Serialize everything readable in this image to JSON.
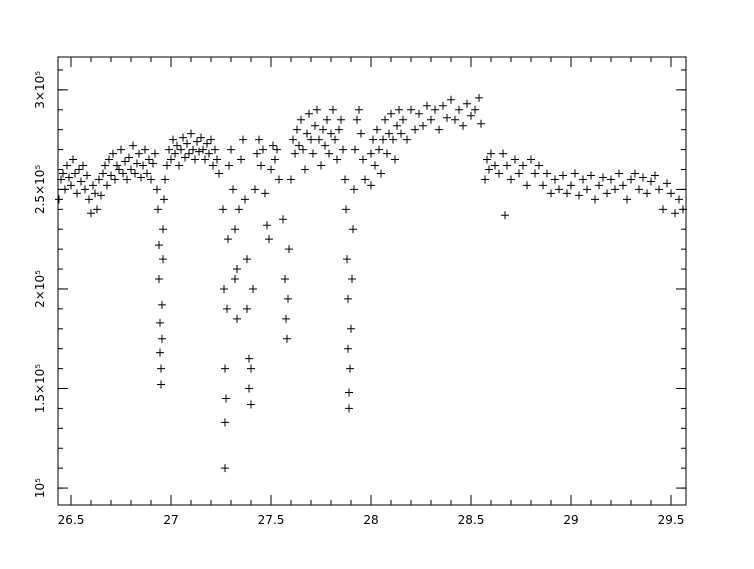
{
  "chart_data": {
    "type": "scatter",
    "marker": "+",
    "color": "#000000",
    "xlim": [
      26.435,
      29.575
    ],
    "ylim": [
      91500,
      316500
    ],
    "xticks": [
      26.5,
      27,
      27.5,
      28,
      28.5,
      29,
      29.5
    ],
    "yticks": [
      {
        "value": 100000,
        "label": "10⁵"
      },
      {
        "value": 150000,
        "label": "1.5×10⁵"
      },
      {
        "value": 200000,
        "label": "2×10⁵"
      },
      {
        "value": 250000,
        "label": "2.5×10⁵"
      },
      {
        "value": 300000,
        "label": "3×10⁵"
      }
    ],
    "xminor": [
      26.5,
      26.6,
      26.7,
      26.8,
      26.9,
      27,
      27.1,
      27.2,
      27.3,
      27.4,
      27.5,
      27.6,
      27.7,
      27.8,
      27.9,
      28,
      28.1,
      28.2,
      28.3,
      28.4,
      28.5,
      28.6,
      28.7,
      28.8,
      28.9,
      29,
      29.1,
      29.2,
      29.3,
      29.4,
      29.5
    ],
    "yminor": [
      100000,
      110000,
      120000,
      130000,
      140000,
      150000,
      160000,
      170000,
      180000,
      190000,
      200000,
      210000,
      220000,
      230000,
      240000,
      250000,
      260000,
      270000,
      280000,
      290000,
      300000,
      310000
    ],
    "x": [
      26.44,
      26.45,
      26.46,
      26.47,
      26.48,
      26.49,
      26.5,
      26.51,
      26.52,
      26.53,
      26.54,
      26.55,
      26.56,
      26.57,
      26.58,
      26.59,
      26.6,
      26.61,
      26.62,
      26.63,
      26.64,
      26.65,
      26.66,
      26.67,
      26.68,
      26.69,
      26.7,
      26.71,
      26.72,
      26.73,
      26.74,
      26.75,
      26.76,
      26.77,
      26.78,
      26.79,
      26.8,
      26.81,
      26.82,
      26.83,
      26.84,
      26.85,
      26.86,
      26.87,
      26.88,
      26.89,
      26.9,
      26.91,
      26.92,
      26.93,
      26.935,
      26.94,
      26.94,
      26.945,
      26.945,
      26.95,
      26.95,
      26.955,
      26.955,
      26.96,
      26.96,
      26.965,
      26.97,
      26.98,
      26.99,
      27.0,
      27.01,
      27.02,
      27.03,
      27.04,
      27.05,
      27.06,
      27.07,
      27.08,
      27.09,
      27.1,
      27.11,
      27.12,
      27.13,
      27.14,
      27.15,
      27.16,
      27.17,
      27.18,
      27.19,
      27.2,
      27.21,
      27.22,
      27.23,
      27.24,
      27.26,
      27.265,
      27.27,
      27.27,
      27.27,
      27.275,
      27.28,
      27.285,
      27.29,
      27.3,
      27.31,
      27.32,
      27.32,
      27.33,
      27.33,
      27.34,
      27.35,
      27.36,
      27.37,
      27.38,
      27.38,
      27.39,
      27.39,
      27.4,
      27.4,
      27.41,
      27.42,
      27.43,
      27.44,
      27.45,
      27.46,
      27.47,
      27.48,
      27.49,
      27.5,
      27.51,
      27.52,
      27.53,
      27.54,
      27.56,
      27.57,
      27.575,
      27.58,
      27.585,
      27.59,
      27.6,
      27.61,
      27.62,
      27.63,
      27.64,
      27.65,
      27.66,
      27.67,
      27.68,
      27.69,
      27.7,
      27.71,
      27.72,
      27.73,
      27.74,
      27.75,
      27.76,
      27.77,
      27.78,
      27.79,
      27.8,
      27.81,
      27.82,
      27.83,
      27.84,
      27.85,
      27.86,
      27.87,
      27.875,
      27.88,
      27.885,
      27.885,
      27.89,
      27.89,
      27.895,
      27.9,
      27.905,
      27.91,
      27.915,
      27.92,
      27.93,
      27.94,
      27.95,
      27.96,
      27.97,
      28.0,
      28.0,
      28.01,
      28.02,
      28.03,
      28.04,
      28.05,
      28.06,
      28.07,
      28.08,
      28.09,
      28.1,
      28.11,
      28.12,
      28.13,
      28.14,
      28.15,
      28.16,
      28.18,
      28.2,
      28.22,
      28.24,
      28.26,
      28.28,
      28.3,
      28.32,
      28.34,
      28.36,
      28.38,
      28.4,
      28.42,
      28.44,
      28.46,
      28.48,
      28.5,
      28.52,
      28.54,
      28.55,
      28.57,
      28.58,
      28.59,
      28.6,
      28.62,
      28.64,
      28.66,
      28.67,
      28.68,
      28.7,
      28.72,
      28.74,
      28.76,
      28.78,
      28.8,
      28.82,
      28.84,
      28.86,
      28.88,
      28.9,
      28.92,
      28.94,
      28.96,
      28.98,
      29.0,
      29.02,
      29.04,
      29.06,
      29.08,
      29.1,
      29.12,
      29.14,
      29.16,
      29.18,
      29.2,
      29.22,
      29.24,
      29.26,
      29.28,
      29.3,
      29.32,
      29.34,
      29.36,
      29.38,
      29.4,
      29.42,
      29.44,
      29.46,
      29.48,
      29.5,
      29.52,
      29.54,
      29.56
    ],
    "values": [
      245000,
      255000,
      258000,
      250000,
      262000,
      256000,
      252000,
      265000,
      258000,
      248000,
      260000,
      254000,
      262000,
      250000,
      257000,
      245000,
      238000,
      252000,
      248000,
      240000,
      255000,
      247000,
      258000,
      262000,
      252000,
      265000,
      257000,
      268000,
      255000,
      262000,
      260000,
      270000,
      258000,
      264000,
      255000,
      266000,
      260000,
      272000,
      258000,
      263000,
      268000,
      256000,
      262000,
      270000,
      258000,
      265000,
      255000,
      263000,
      268000,
      250000,
      240000,
      222000,
      205000,
      183000,
      168000,
      152000,
      160000,
      175000,
      192000,
      215000,
      230000,
      245000,
      255000,
      262000,
      270000,
      265000,
      275000,
      268000,
      272000,
      262000,
      270000,
      276000,
      266000,
      273000,
      268000,
      278000,
      270000,
      265000,
      274000,
      269000,
      276000,
      270000,
      265000,
      273000,
      268000,
      275000,
      262000,
      270000,
      265000,
      258000,
      240000,
      200000,
      160000,
      133000,
      110000,
      145000,
      190000,
      225000,
      262000,
      270000,
      250000,
      230000,
      205000,
      185000,
      210000,
      240000,
      265000,
      275000,
      245000,
      215000,
      190000,
      165000,
      150000,
      142000,
      160000,
      200000,
      250000,
      268000,
      275000,
      262000,
      270000,
      248000,
      232000,
      225000,
      260000,
      272000,
      265000,
      270000,
      255000,
      235000,
      205000,
      185000,
      175000,
      195000,
      220000,
      255000,
      275000,
      268000,
      280000,
      272000,
      285000,
      270000,
      260000,
      278000,
      288000,
      275000,
      268000,
      282000,
      290000,
      275000,
      262000,
      280000,
      272000,
      285000,
      268000,
      278000,
      290000,
      275000,
      265000,
      280000,
      285000,
      270000,
      255000,
      240000,
      215000,
      195000,
      170000,
      148000,
      140000,
      160000,
      180000,
      205000,
      230000,
      250000,
      270000,
      285000,
      290000,
      278000,
      265000,
      255000,
      252000,
      268000,
      275000,
      262000,
      280000,
      270000,
      258000,
      275000,
      285000,
      268000,
      278000,
      288000,
      275000,
      265000,
      282000,
      290000,
      278000,
      285000,
      275000,
      290000,
      280000,
      288000,
      282000,
      292000,
      285000,
      290000,
      280000,
      292000,
      286000,
      295000,
      285000,
      290000,
      282000,
      293000,
      287000,
      290000,
      296000,
      283000,
      255000,
      265000,
      260000,
      268000,
      262000,
      258000,
      268000,
      237000,
      262000,
      255000,
      265000,
      258000,
      262000,
      252000,
      265000,
      258000,
      262000,
      252000,
      258000,
      248000,
      255000,
      250000,
      257000,
      248000,
      252000,
      258000,
      247000,
      255000,
      250000,
      257000,
      245000,
      252000,
      256000,
      248000,
      255000,
      250000,
      258000,
      252000,
      245000,
      255000,
      258000,
      250000,
      256000,
      248000,
      254000,
      257000,
      250000,
      240000,
      253000,
      248000,
      238000,
      245000,
      240000
    ]
  }
}
